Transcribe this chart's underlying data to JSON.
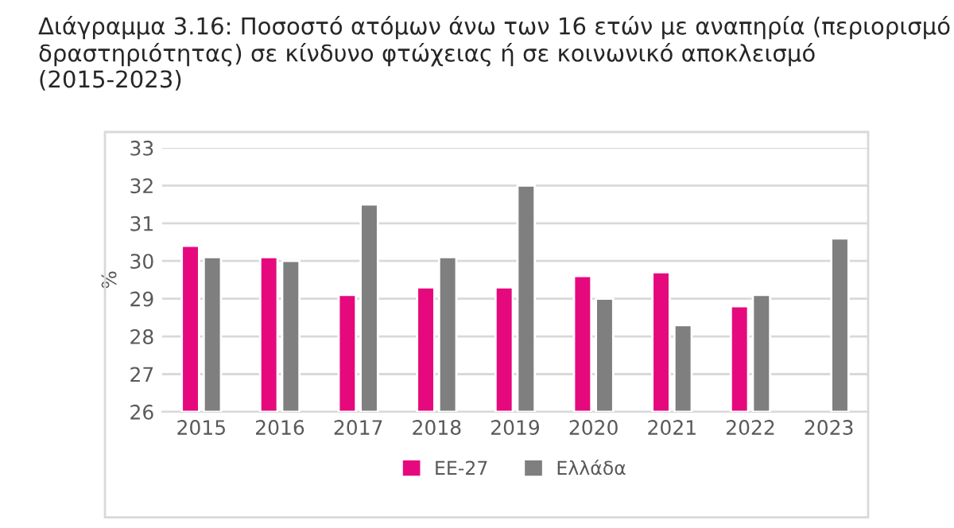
{
  "chart_data": {
    "type": "bar",
    "title": "Διάγραμμα 3.16: Ποσοστό ατόμων άνω των 16 ετών με αναπηρία (περιορισμό δραστηριότητας) σε κίνδυνο φτώχειας ή σε κοινωνικό αποκλεισμό (2015-2023)",
    "ylabel": "%",
    "categories": [
      "2015",
      "2016",
      "2017",
      "2018",
      "2019",
      "2020",
      "2021",
      "2022",
      "2023"
    ],
    "series": [
      {
        "name": "ΕΕ-27",
        "color": "#e6097e",
        "values": [
          30.4,
          30.1,
          29.1,
          29.3,
          29.3,
          29.6,
          29.7,
          28.8,
          null
        ]
      },
      {
        "name": "Ελλάδα",
        "color": "#7f7f7f",
        "values": [
          30.1,
          30.0,
          31.5,
          30.1,
          32.0,
          29.0,
          28.3,
          29.1,
          30.6
        ]
      }
    ],
    "ylim": [
      26,
      33
    ],
    "yticks": [
      26,
      27,
      28,
      29,
      30,
      31,
      32,
      33
    ],
    "grid": "y",
    "legend": "bottom"
  }
}
